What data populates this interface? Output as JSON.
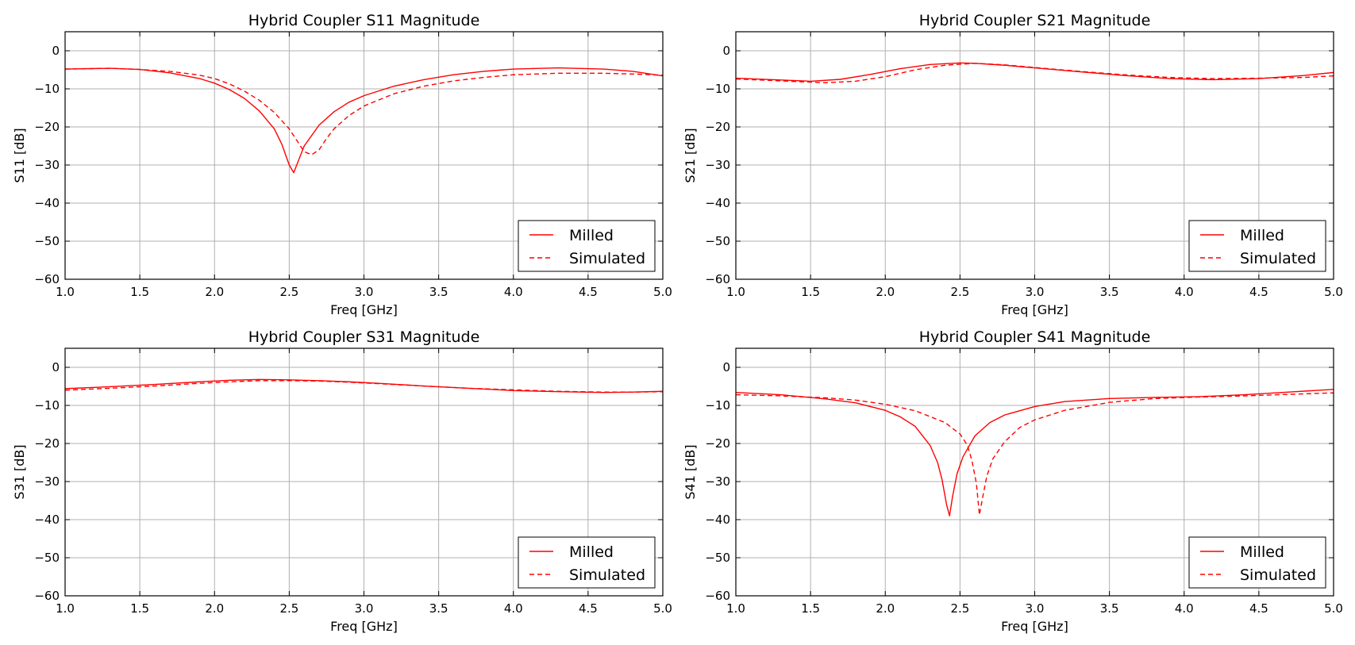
{
  "chart_data": [
    {
      "type": "line",
      "title": "Hybrid Coupler S11 Magnitude",
      "xlabel": "Freq [GHz]",
      "ylabel": "S11 [dB]",
      "xlim": [
        1.0,
        5.0
      ],
      "ylim": [
        -60,
        5
      ],
      "xticks": [
        1.0,
        1.5,
        2.0,
        2.5,
        3.0,
        3.5,
        4.0,
        4.5,
        5.0
      ],
      "yticks": [
        0,
        -10,
        -20,
        -30,
        -40,
        -50,
        -60
      ],
      "grid": true,
      "legend": "lower-right",
      "series": [
        {
          "name": "Milled",
          "style": "solid",
          "color": "#ff0000",
          "x": [
            1.0,
            1.3,
            1.5,
            1.7,
            1.9,
            2.0,
            2.1,
            2.2,
            2.3,
            2.4,
            2.45,
            2.5,
            2.53,
            2.56,
            2.6,
            2.7,
            2.8,
            2.9,
            3.0,
            3.2,
            3.4,
            3.6,
            3.8,
            4.0,
            4.3,
            4.6,
            4.8,
            5.0
          ],
          "y": [
            -4.8,
            -4.6,
            -4.9,
            -5.8,
            -7.3,
            -8.5,
            -10.2,
            -12.5,
            -15.8,
            -20.5,
            -24.5,
            -30.0,
            -32.0,
            -29.0,
            -25.0,
            -19.5,
            -16.0,
            -13.5,
            -11.8,
            -9.3,
            -7.6,
            -6.3,
            -5.4,
            -4.8,
            -4.5,
            -4.8,
            -5.4,
            -6.6
          ]
        },
        {
          "name": "Simulated",
          "style": "dashed",
          "color": "#ff0000",
          "x": [
            1.0,
            1.3,
            1.5,
            1.7,
            1.9,
            2.0,
            2.1,
            2.2,
            2.3,
            2.4,
            2.5,
            2.55,
            2.6,
            2.65,
            2.7,
            2.75,
            2.8,
            2.9,
            3.0,
            3.2,
            3.4,
            3.6,
            3.8,
            4.0,
            4.3,
            4.6,
            4.8,
            5.0
          ],
          "y": [
            -4.8,
            -4.6,
            -4.9,
            -5.4,
            -6.4,
            -7.3,
            -8.7,
            -10.6,
            -13.0,
            -16.2,
            -20.5,
            -23.5,
            -26.5,
            -27.3,
            -26.0,
            -23.0,
            -20.5,
            -17.0,
            -14.5,
            -11.3,
            -9.3,
            -7.9,
            -7.0,
            -6.3,
            -5.9,
            -5.9,
            -6.1,
            -6.4
          ]
        }
      ]
    },
    {
      "type": "line",
      "title": "Hybrid Coupler S21 Magnitude",
      "xlabel": "Freq [GHz]",
      "ylabel": "S21 [dB]",
      "xlim": [
        1.0,
        5.0
      ],
      "ylim": [
        -60,
        5
      ],
      "xticks": [
        1.0,
        1.5,
        2.0,
        2.5,
        3.0,
        3.5,
        4.0,
        4.5,
        5.0
      ],
      "yticks": [
        0,
        -10,
        -20,
        -30,
        -40,
        -50,
        -60
      ],
      "grid": true,
      "legend": "lower-right",
      "series": [
        {
          "name": "Milled",
          "style": "solid",
          "color": "#ff0000",
          "x": [
            1.0,
            1.25,
            1.5,
            1.7,
            1.9,
            2.1,
            2.3,
            2.5,
            2.6,
            2.8,
            3.0,
            3.3,
            3.6,
            3.9,
            4.2,
            4.5,
            4.8,
            5.0
          ],
          "y": [
            -7.2,
            -7.6,
            -8.0,
            -7.5,
            -6.2,
            -4.7,
            -3.6,
            -3.2,
            -3.3,
            -3.8,
            -4.5,
            -5.5,
            -6.5,
            -7.3,
            -7.6,
            -7.3,
            -6.5,
            -5.7
          ]
        },
        {
          "name": "Simulated",
          "style": "dashed",
          "color": "#ff0000",
          "x": [
            1.0,
            1.3,
            1.6,
            1.8,
            2.0,
            2.2,
            2.4,
            2.6,
            2.8,
            3.0,
            3.3,
            3.6,
            3.9,
            4.2,
            4.5,
            4.8,
            5.0
          ],
          "y": [
            -7.4,
            -7.9,
            -8.4,
            -8.0,
            -6.8,
            -5.0,
            -3.8,
            -3.3,
            -3.7,
            -4.4,
            -5.4,
            -6.3,
            -7.0,
            -7.3,
            -7.2,
            -7.0,
            -6.6
          ]
        }
      ]
    },
    {
      "type": "line",
      "title": "Hybrid Coupler S31 Magnitude",
      "xlabel": "Freq [GHz]",
      "ylabel": "S31 [dB]",
      "xlim": [
        1.0,
        5.0
      ],
      "ylim": [
        -60,
        5
      ],
      "xticks": [
        1.0,
        1.5,
        2.0,
        2.5,
        3.0,
        3.5,
        4.0,
        4.5,
        5.0
      ],
      "yticks": [
        0,
        -10,
        -20,
        -30,
        -40,
        -50,
        -60
      ],
      "grid": true,
      "legend": "lower-right",
      "series": [
        {
          "name": "Milled",
          "style": "solid",
          "color": "#ff0000",
          "x": [
            1.0,
            1.3,
            1.6,
            1.9,
            2.1,
            2.3,
            2.5,
            2.7,
            2.9,
            3.1,
            3.4,
            3.7,
            4.0,
            4.3,
            4.6,
            4.8,
            5.0
          ],
          "y": [
            -5.6,
            -5.1,
            -4.5,
            -3.8,
            -3.4,
            -3.2,
            -3.3,
            -3.5,
            -3.8,
            -4.2,
            -4.9,
            -5.5,
            -6.1,
            -6.4,
            -6.6,
            -6.5,
            -6.3
          ]
        },
        {
          "name": "Simulated",
          "style": "dashed",
          "color": "#ff0000",
          "x": [
            1.0,
            1.3,
            1.6,
            1.9,
            2.1,
            2.3,
            2.5,
            2.7,
            2.9,
            3.1,
            3.4,
            3.7,
            4.0,
            4.3,
            4.6,
            4.8,
            5.0
          ],
          "y": [
            -6.0,
            -5.5,
            -4.9,
            -4.2,
            -3.8,
            -3.5,
            -3.5,
            -3.6,
            -3.9,
            -4.3,
            -4.9,
            -5.5,
            -5.9,
            -6.3,
            -6.5,
            -6.5,
            -6.4
          ]
        }
      ]
    },
    {
      "type": "line",
      "title": "Hybrid Coupler S41 Magnitude",
      "xlabel": "Freq [GHz]",
      "ylabel": "S41 [dB]",
      "xlim": [
        1.0,
        5.0
      ],
      "ylim": [
        -60,
        5
      ],
      "xticks": [
        1.0,
        1.5,
        2.0,
        2.5,
        3.0,
        3.5,
        4.0,
        4.5,
        5.0
      ],
      "yticks": [
        0,
        -10,
        -20,
        -30,
        -40,
        -50,
        -60
      ],
      "grid": true,
      "legend": "lower-right",
      "series": [
        {
          "name": "Milled",
          "style": "solid",
          "color": "#ff0000",
          "x": [
            1.0,
            1.3,
            1.6,
            1.8,
            2.0,
            2.1,
            2.2,
            2.3,
            2.35,
            2.38,
            2.41,
            2.43,
            2.45,
            2.48,
            2.52,
            2.6,
            2.7,
            2.8,
            3.0,
            3.2,
            3.5,
            3.8,
            4.1,
            4.4,
            4.7,
            5.0
          ],
          "y": [
            -6.6,
            -7.2,
            -8.3,
            -9.3,
            -11.3,
            -13.0,
            -15.5,
            -20.5,
            -25.0,
            -29.5,
            -36.0,
            -39.0,
            -34.0,
            -28.0,
            -23.5,
            -18.0,
            -14.5,
            -12.5,
            -10.3,
            -9.0,
            -8.2,
            -7.9,
            -7.7,
            -7.2,
            -6.5,
            -5.8
          ]
        },
        {
          "name": "Simulated",
          "style": "dashed",
          "color": "#ff0000",
          "x": [
            1.0,
            1.3,
            1.6,
            1.8,
            2.0,
            2.2,
            2.4,
            2.5,
            2.55,
            2.58,
            2.61,
            2.63,
            2.65,
            2.68,
            2.72,
            2.8,
            2.9,
            3.0,
            3.2,
            3.5,
            3.8,
            4.1,
            4.4,
            4.7,
            5.0
          ],
          "y": [
            -7.2,
            -7.5,
            -8.0,
            -8.6,
            -9.7,
            -11.4,
            -14.5,
            -17.5,
            -20.5,
            -24.5,
            -30.5,
            -38.8,
            -34.5,
            -28.5,
            -24.0,
            -19.5,
            -15.8,
            -13.8,
            -11.3,
            -9.2,
            -8.2,
            -7.8,
            -7.5,
            -7.1,
            -6.7
          ]
        }
      ]
    }
  ]
}
